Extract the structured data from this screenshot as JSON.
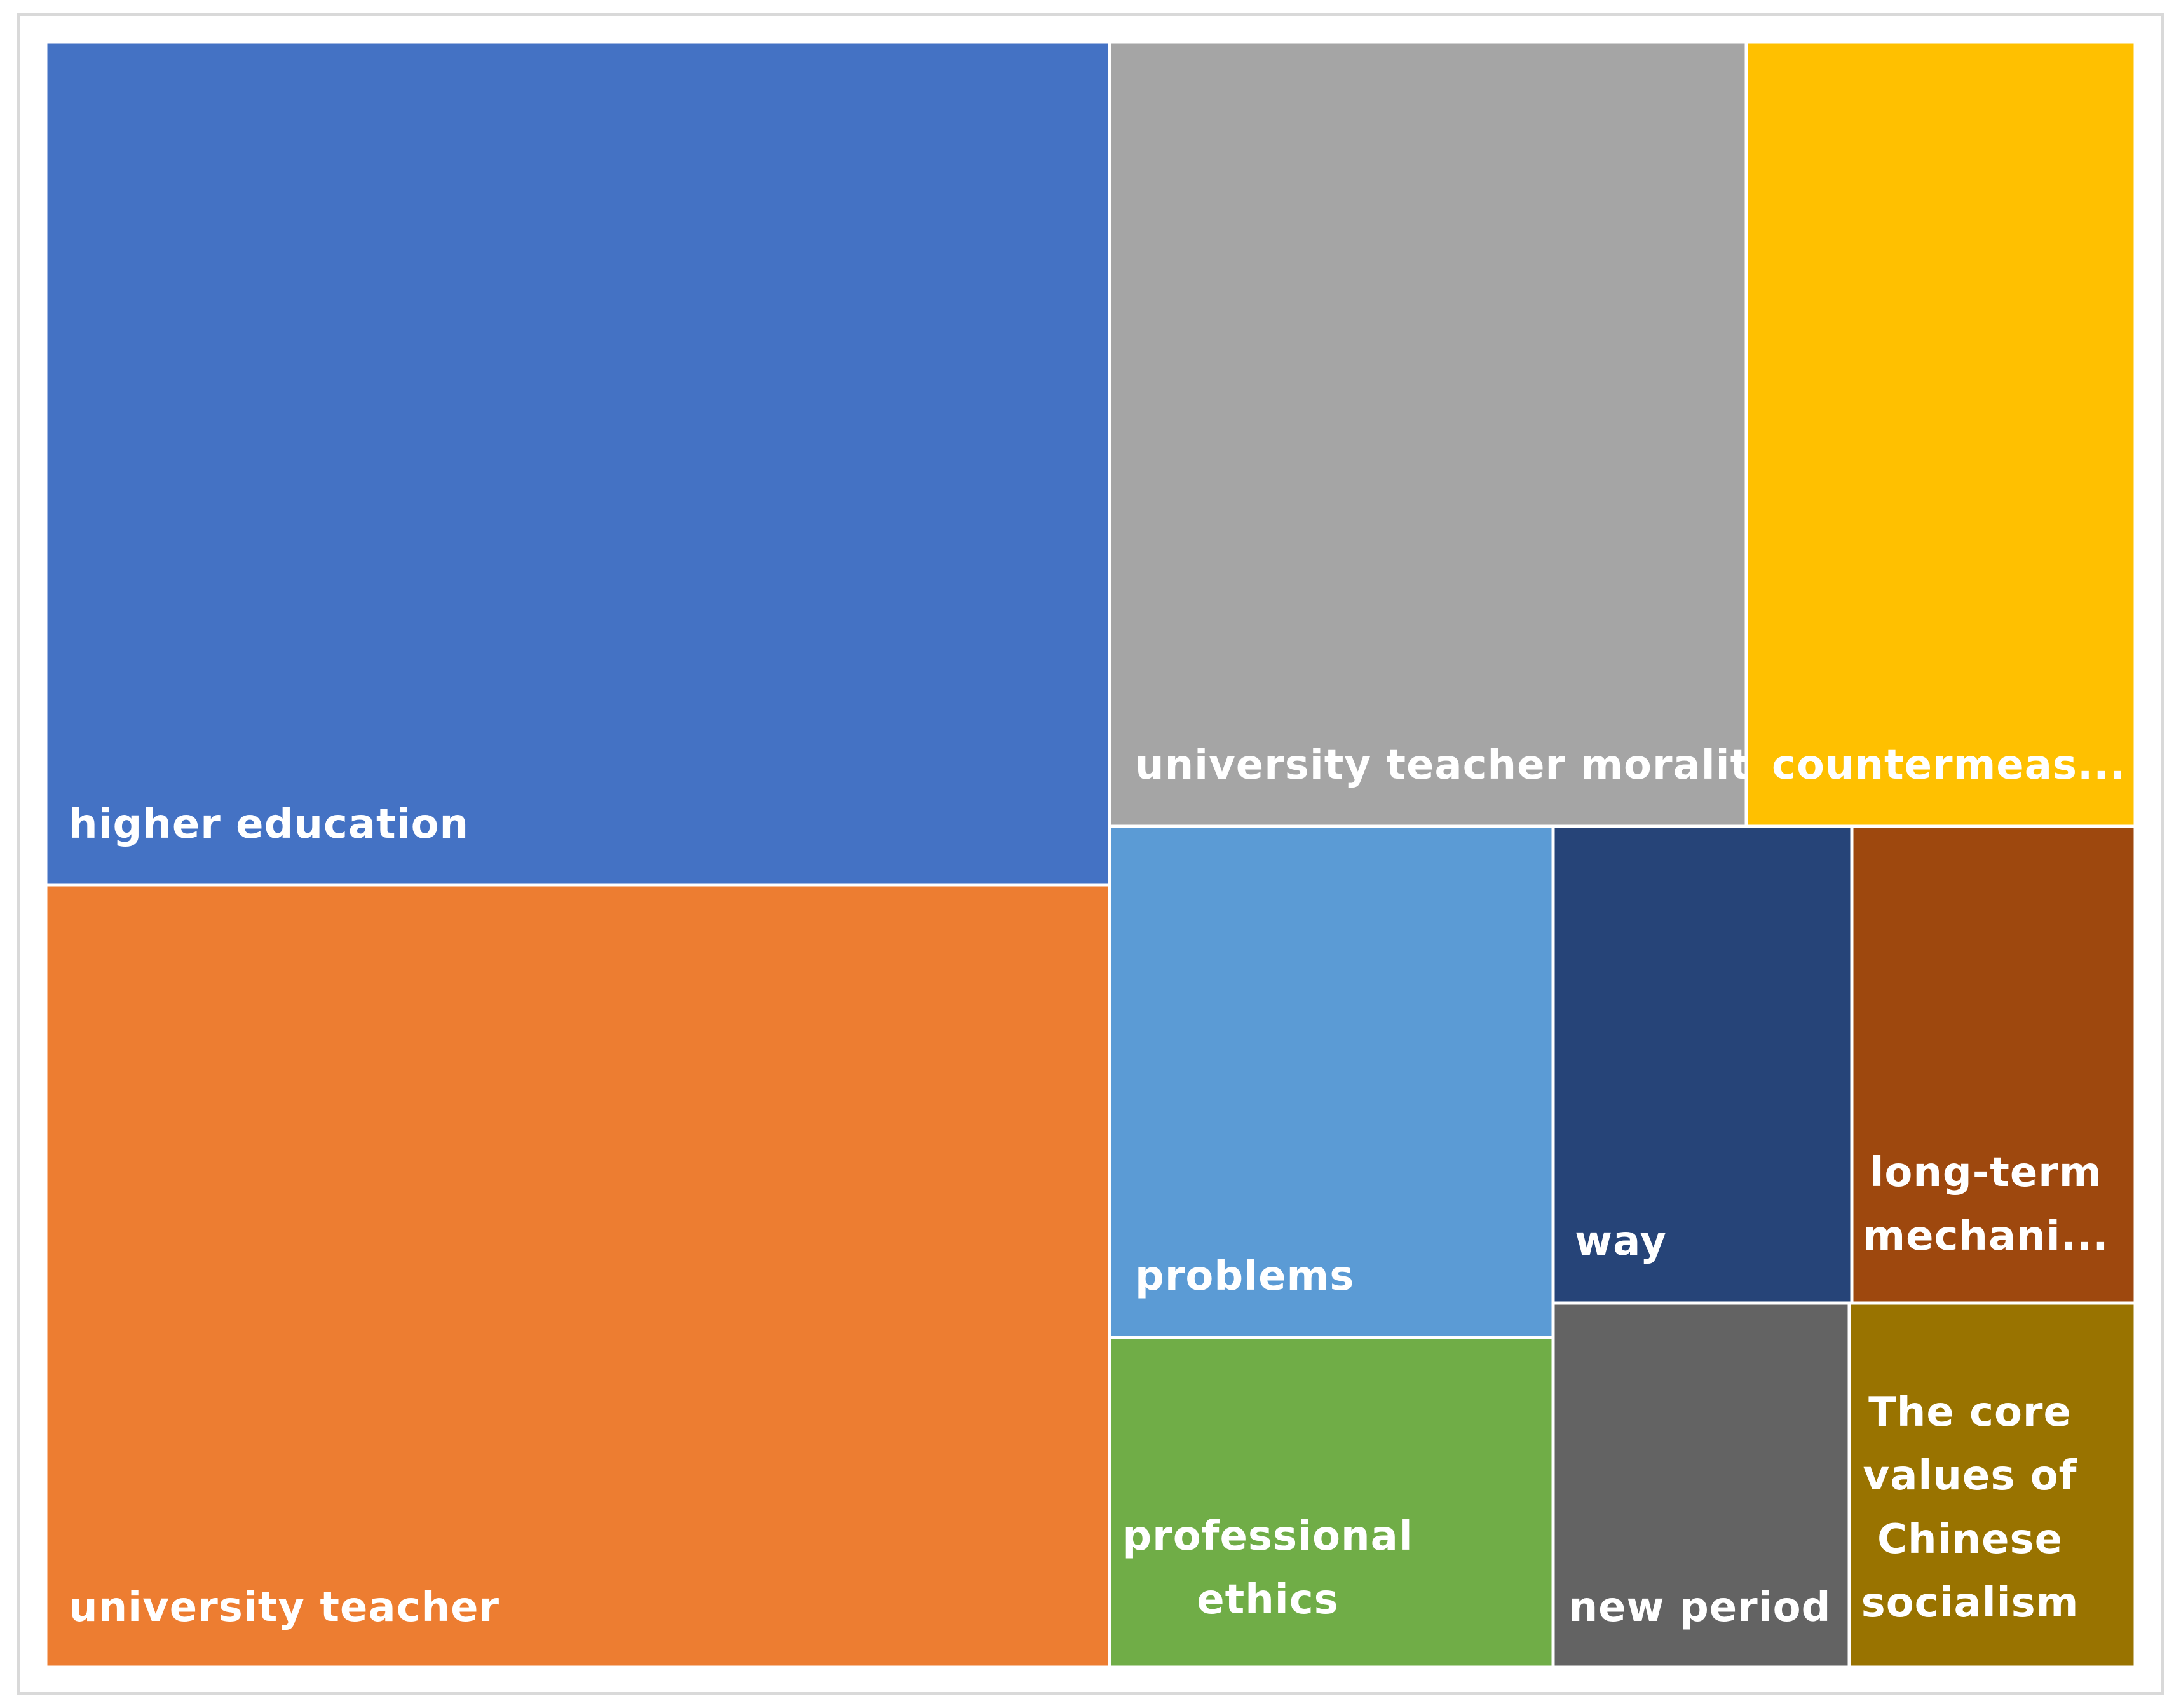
{
  "chart_data": {
    "type": "treemap",
    "title": "",
    "items": [
      {
        "label": "higher education",
        "value": 40.0,
        "color": "#4472C4",
        "lines": [
          "higher education"
        ]
      },
      {
        "label": "university teacher",
        "value": 37.0,
        "color": "#ED7D31",
        "lines": [
          "university teacher"
        ]
      },
      {
        "label": "university teacher morality",
        "value": 22.5,
        "color": "#A5A5A5",
        "lines": [
          "university teacher morality"
        ]
      },
      {
        "label": "countermeasures",
        "value": 13.5,
        "color": "#FFC000",
        "lines": [
          "countermeas..."
        ]
      },
      {
        "label": "problems",
        "value": 10.2,
        "color": "#5B9BD5",
        "lines": [
          "problems"
        ]
      },
      {
        "label": "professional ethics",
        "value": 6.5,
        "color": "#70AD47",
        "lines": [
          "professional",
          "ethics"
        ]
      },
      {
        "label": "way",
        "value": 6.4,
        "color": "#264478",
        "lines": [
          "way"
        ]
      },
      {
        "label": "long-term mechanism",
        "value": 6.1,
        "color": "#9E480E",
        "lines": [
          "long-term",
          "mechani..."
        ]
      },
      {
        "label": "new period",
        "value": 5.5,
        "color": "#636363",
        "lines": [
          "new period"
        ]
      },
      {
        "label": "The core values of Chinese socialism",
        "value": 5.2,
        "color": "#997300",
        "lines": [
          "The core",
          "values of",
          "Chinese",
          "socialism"
        ]
      }
    ]
  }
}
